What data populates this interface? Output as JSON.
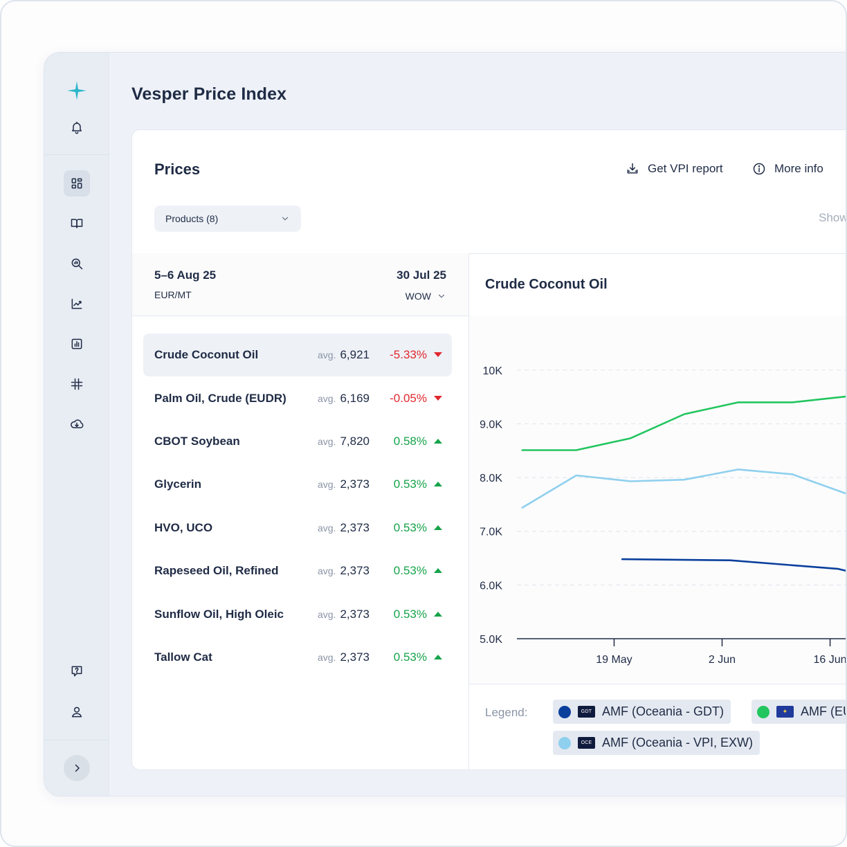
{
  "app": {
    "page_title": "Vesper Price Index"
  },
  "prices": {
    "title": "Prices",
    "get_report": "Get VPI report",
    "more_info": "More info",
    "products_dropdown": "Products (8)",
    "show_text": "Show"
  },
  "list_header": {
    "date_current": "5–6 Aug 25",
    "unit": "EUR/MT",
    "date_compare": "30 Jul 25",
    "period": "WOW"
  },
  "products": [
    {
      "name": "Crude Coconut Oil",
      "avg_label": "avg.",
      "avg": "6,921",
      "change": "-5.33%",
      "direction": "down",
      "selected": true
    },
    {
      "name": "Palm Oil, Crude (EUDR)",
      "avg_label": "avg.",
      "avg": "6,169",
      "change": "-0.05%",
      "direction": "down",
      "selected": false
    },
    {
      "name": "CBOT Soybean",
      "avg_label": "avg.",
      "avg": "7,820",
      "change": "0.58%",
      "direction": "up",
      "selected": false
    },
    {
      "name": "Glycerin",
      "avg_label": "avg.",
      "avg": "2,373",
      "change": "0.53%",
      "direction": "up",
      "selected": false
    },
    {
      "name": "HVO, UCO",
      "avg_label": "avg.",
      "avg": "2,373",
      "change": "0.53%",
      "direction": "up",
      "selected": false
    },
    {
      "name": "Rapeseed Oil, Refined",
      "avg_label": "avg.",
      "avg": "2,373",
      "change": "0.53%",
      "direction": "up",
      "selected": false
    },
    {
      "name": "Sunflow Oil, High Oleic",
      "avg_label": "avg.",
      "avg": "2,373",
      "change": "0.53%",
      "direction": "up",
      "selected": false
    },
    {
      "name": "Tallow Cat",
      "avg_label": "avg.",
      "avg": "2,373",
      "change": "0.53%",
      "direction": "up",
      "selected": false
    }
  ],
  "colors": {
    "down": "#e0282e",
    "up": "#16a34a",
    "accent": "#2bb6c9"
  },
  "legend": {
    "label": "Legend:",
    "items": [
      {
        "text": "AMF (Oceania - GDT)",
        "flag": "GDT",
        "color": "#0a3f9c"
      },
      {
        "text": "AMF (EU",
        "flag": "EU",
        "color": "#22c55e"
      },
      {
        "text": "AMF (Oceania - VPI, EXW)",
        "flag": "OCE",
        "color": "#8fd0ee"
      }
    ]
  },
  "chart_data": {
    "type": "line",
    "title": "Crude Coconut Oil",
    "xlabel": "",
    "ylabel": "",
    "ylim": [
      5000,
      10500
    ],
    "y_ticks": [
      5000,
      6000,
      7000,
      8000,
      9000,
      10000
    ],
    "y_tick_labels": [
      "5.0K",
      "6.0K",
      "7.0K",
      "8.0K",
      "9.0K",
      "10K"
    ],
    "x_ticks": [
      {
        "week": 2,
        "label": "19 May"
      },
      {
        "week": 4,
        "label": "2 Jun"
      },
      {
        "week": 6,
        "label": "16 Jun"
      }
    ],
    "x_range": [
      0.2,
      7.3
    ],
    "grid": true,
    "series": [
      {
        "name": "AMF (EU",
        "color": "#22c55e",
        "x": [
          0.3,
          1.3,
          2.3,
          3.3,
          4.3,
          5.3,
          6.3,
          7.0,
          7.3
        ],
        "y": [
          8510,
          8510,
          8730,
          9180,
          9400,
          9400,
          9510,
          9180,
          9180
        ]
      },
      {
        "name": "AMF (Oceania - VPI, EXW)",
        "color": "#8fd0ee",
        "x": [
          0.3,
          1.3,
          2.3,
          3.3,
          4.3,
          5.3,
          6.3,
          7.0,
          7.3
        ],
        "y": [
          7440,
          8040,
          7930,
          7960,
          8150,
          8060,
          7700,
          7500,
          7200
        ]
      },
      {
        "name": "AMF (Oceania - GDT)",
        "color": "#0a3f9c",
        "x": [
          2.15,
          4.15,
          6.15,
          7.3
        ],
        "y": [
          6480,
          6460,
          6300,
          6020
        ]
      }
    ]
  }
}
